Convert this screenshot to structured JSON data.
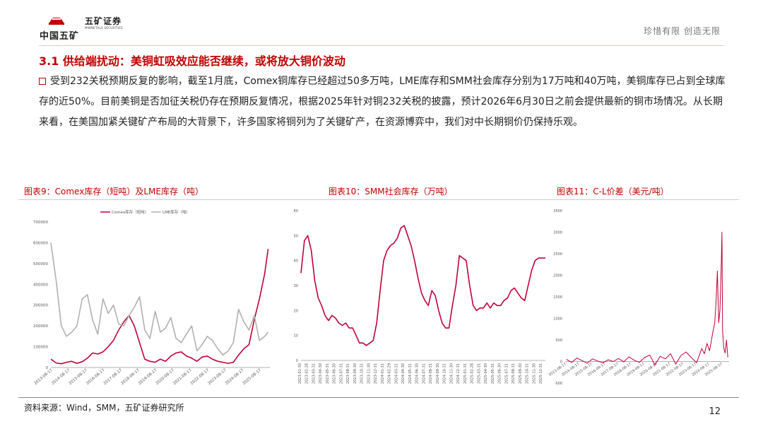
{
  "header": {
    "logo_cn": "中国五矿",
    "logo_name": "五矿证券",
    "logo_en": "MINMETALS SECURITIES",
    "slogan": "珍惜有限  创造无限"
  },
  "section_title": "3.1 供给端扰动：美铜虹吸效应能否继续，或将放大铜价波动",
  "body_text": "受到232关税预期反复的影响，截至1月底，Comex铜库存已经超过50多万吨，LME库存和SMM社会库存分别为17万吨和40万吨，美铜库存已占到全球库存的近50%。目前美铜是否加征关税仍存在预期反复情况，根据2025年针对铜232关税的披露，预计2026年6月30日之前会提供最新的铜市场情况。从长期来看，在美国加紧关键矿产布局的大背景下，许多国家将铜列为了关键矿产，在资源博弈中，我们对中长期铜价仍保持乐观。",
  "figures": {
    "fig9_title": "图表9：Comex库存（短吨）及LME库存（吨）",
    "fig10_title": "图表10：SMM社会库存（万吨）",
    "fig11_title": "图表11：C-L价差（美元/吨）"
  },
  "footer": {
    "source": "资料来源：Wind，SMM，五矿证券研究所",
    "page_number": "12"
  },
  "colors": {
    "accent": "#c00000",
    "series_red": "#c0003a",
    "series_gray": "#b0b0b0"
  },
  "chart_data": [
    {
      "type": "line",
      "title": "图表9：Comex库存（短吨）及LME库存（吨）",
      "x_ticks": [
        "2013-08-17",
        "2014-08-17",
        "2015-08-17",
        "2016-08-17",
        "2017-08-17",
        "2018-08-17",
        "2019-08-17",
        "2020-08-17",
        "2021-08-17",
        "2022-08-17",
        "2023-08-17",
        "2024-08-17",
        "2025-08-17"
      ],
      "y_ticks": [
        "0",
        "100000",
        "200000",
        "300000",
        "400000",
        "500000",
        "600000",
        "700000"
      ],
      "ylim": [
        0,
        700000
      ],
      "legend": "top",
      "series": [
        {
          "name": "Comex库存（短吨）",
          "x": [
            2013.5,
            2013.8,
            2014.1,
            2014.4,
            2014.7,
            2015.0,
            2015.3,
            2015.6,
            2015.9,
            2016.2,
            2016.5,
            2016.8,
            2017.1,
            2017.4,
            2017.7,
            2018.0,
            2018.3,
            2018.6,
            2018.9,
            2019.2,
            2019.5,
            2019.8,
            2020.1,
            2020.4,
            2020.7,
            2021.0,
            2021.3,
            2021.6,
            2021.9,
            2022.2,
            2022.5,
            2022.8,
            2023.1,
            2023.4,
            2023.7,
            2024.0,
            2024.3,
            2024.6,
            2024.9,
            2025.2,
            2025.5,
            2025.8,
            2026.0
          ],
          "values": [
            40000,
            22000,
            18000,
            25000,
            30000,
            20000,
            28000,
            45000,
            70000,
            65000,
            75000,
            100000,
            130000,
            180000,
            220000,
            250000,
            200000,
            120000,
            40000,
            30000,
            25000,
            40000,
            30000,
            55000,
            70000,
            75000,
            55000,
            45000,
            30000,
            50000,
            55000,
            40000,
            30000,
            25000,
            20000,
            25000,
            60000,
            90000,
            110000,
            230000,
            330000,
            450000,
            570000
          ]
        },
        {
          "name": "LME库存（吨）",
          "x": [
            2013.5,
            2013.8,
            2014.1,
            2014.4,
            2014.7,
            2015.0,
            2015.3,
            2015.6,
            2015.9,
            2016.2,
            2016.5,
            2016.8,
            2017.1,
            2017.4,
            2017.7,
            2018.0,
            2018.3,
            2018.6,
            2018.9,
            2019.2,
            2019.5,
            2019.8,
            2020.1,
            2020.4,
            2020.7,
            2021.0,
            2021.3,
            2021.6,
            2021.9,
            2022.2,
            2022.5,
            2022.8,
            2023.1,
            2023.4,
            2023.7,
            2024.0,
            2024.3,
            2024.6,
            2024.9,
            2025.2,
            2025.5,
            2025.8,
            2026.0
          ],
          "values": [
            600000,
            420000,
            200000,
            150000,
            170000,
            200000,
            330000,
            350000,
            230000,
            160000,
            330000,
            260000,
            300000,
            210000,
            200000,
            250000,
            290000,
            340000,
            180000,
            140000,
            270000,
            170000,
            190000,
            240000,
            140000,
            120000,
            160000,
            200000,
            80000,
            110000,
            150000,
            130000,
            90000,
            60000,
            80000,
            120000,
            280000,
            220000,
            180000,
            250000,
            130000,
            150000,
            170000
          ]
        }
      ]
    },
    {
      "type": "line",
      "title": "图表10：SMM社会库存（万吨）",
      "x_ticks": [
        "2023-01-30",
        "2023-02-28",
        "2023-03-31",
        "2023-04-30",
        "2023-05-31",
        "2023-06-30",
        "2023-07-31",
        "2023-08-31",
        "2023-09-30",
        "2023-10-31",
        "2023-11-30",
        "2023-12-31",
        "2024-01-31",
        "2024-02-29",
        "2024-03-31",
        "2024-04-30",
        "2024-05-31",
        "2024-06-30",
        "2024-07-31",
        "2024-08-31",
        "2024-09-30",
        "2024-10-31",
        "2024-11-30",
        "2024-12-31",
        "2025-01-31",
        "2025-02-28",
        "2025-03-31",
        "2025-04-30",
        "2025-05-31",
        "2025-06-30",
        "2025-07-31",
        "2025-08-31",
        "2025-09-30",
        "2025-10-31",
        "2025-11-30",
        "2025-12-31"
      ],
      "y_ticks": [
        "0",
        "10",
        "20",
        "30",
        "40",
        "50",
        "60"
      ],
      "ylim": [
        0,
        60
      ],
      "series": [
        {
          "name": "",
          "x": [
            0,
            0.5,
            1,
            1.5,
            2,
            2.5,
            3,
            3.5,
            4,
            4.5,
            5,
            5.5,
            6,
            6.5,
            7,
            7.5,
            8,
            8.5,
            9,
            9.5,
            10,
            10.5,
            11,
            11.5,
            12,
            12.5,
            13,
            13.5,
            14,
            14.5,
            15,
            15.5,
            16,
            16.5,
            17,
            17.5,
            18,
            18.5,
            19,
            19.5,
            20,
            20.5,
            21,
            21.5,
            22,
            22.5,
            23,
            23.5,
            24,
            24.5,
            25,
            25.5,
            26,
            26.5,
            27,
            27.5,
            28,
            28.5,
            29,
            29.5,
            30,
            30.5,
            31,
            31.5,
            32,
            32.5,
            33,
            33.5,
            34,
            34.5,
            35,
            35.5
          ],
          "values": [
            35,
            48,
            50,
            44,
            32,
            25,
            22,
            18,
            16,
            18,
            17,
            15,
            14,
            15,
            13,
            13,
            10,
            7,
            7,
            6,
            7,
            8,
            15,
            28,
            40,
            44,
            46,
            47,
            49,
            53,
            54,
            50,
            46,
            40,
            33,
            27,
            24,
            22,
            28,
            26,
            20,
            15,
            13,
            13,
            22,
            30,
            42,
            41,
            40,
            30,
            22,
            20,
            21,
            21,
            23,
            21,
            23,
            22,
            22,
            24,
            25,
            28,
            29,
            27,
            25,
            24,
            30,
            36,
            40,
            41,
            41,
            41
          ]
        }
      ]
    },
    {
      "type": "line",
      "title": "图表11：C-L价差（美元/吨）",
      "x_ticks": [
        "2013-08-17",
        "2014-08-17",
        "2015-08-17",
        "2016-08-17",
        "2017-08-17",
        "2018-08-17",
        "2019-08-17",
        "2020-08-17",
        "2021-08-17",
        "2022-08-17",
        "2023-08-17",
        "2024-08-17",
        "2025-08-17"
      ],
      "y_ticks": [
        "-500",
        "0",
        "500",
        "1000",
        "1500",
        "2000",
        "2500",
        "3000",
        "3500"
      ],
      "ylim": [
        -500,
        3500
      ],
      "series": [
        {
          "name": "",
          "x": [
            2013.6,
            2014.0,
            2014.4,
            2014.8,
            2015.2,
            2015.6,
            2016.0,
            2016.4,
            2016.8,
            2017.2,
            2017.6,
            2018.0,
            2018.4,
            2018.8,
            2019.2,
            2019.6,
            2020.0,
            2020.4,
            2020.8,
            2021.2,
            2021.6,
            2022.0,
            2022.4,
            2022.8,
            2023.2,
            2023.6,
            2024.0,
            2024.2,
            2024.4,
            2024.6,
            2024.8,
            2025.0,
            2025.1,
            2025.2,
            2025.3,
            2025.4,
            2025.5,
            2025.55,
            2025.6,
            2025.7,
            2025.8,
            2025.9,
            2026.0
          ],
          "values": [
            50,
            -20,
            80,
            20,
            -40,
            60,
            10,
            -30,
            40,
            0,
            70,
            -10,
            110,
            30,
            -20,
            90,
            150,
            -80,
            120,
            60,
            180,
            -60,
            140,
            220,
            90,
            -30,
            300,
            180,
            420,
            250,
            600,
            900,
            1400,
            2100,
            900,
            1200,
            2300,
            3000,
            700,
            300,
            200,
            500,
            100
          ]
        }
      ]
    }
  ]
}
